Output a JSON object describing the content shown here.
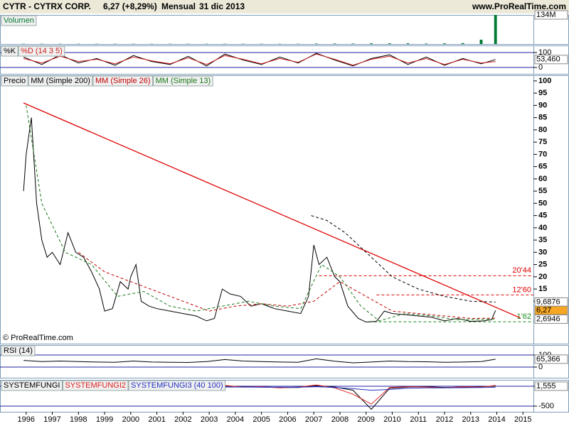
{
  "header": {
    "symbol": "CYTR - CYTRX CORP.",
    "quote": "6,27 (+8,29%)",
    "period": "Mensual",
    "date": "31 dic 2013",
    "site": "www.ProRealTime.com"
  },
  "copyright": "© ProRealTime.com",
  "x_axis": {
    "xlim": [
      1995,
      2015.4
    ],
    "xticks": [
      1996,
      1997,
      1998,
      1999,
      2000,
      2001,
      2002,
      2003,
      2004,
      2005,
      2006,
      2007,
      2008,
      2009,
      2010,
      2011,
      2012,
      2013,
      2014,
      2015
    ]
  },
  "chart_data": [
    {
      "type": "bar",
      "ylim": [
        0,
        134
      ],
      "x": [
        1995.9,
        1996.6,
        1997.3,
        1998.0,
        1998.7,
        1999.4,
        2000.1,
        2000.8,
        2001.5,
        2002.2,
        2002.9,
        2003.6,
        2004.3,
        2005.0,
        2005.7,
        2006.4,
        2007.1,
        2007.8,
        2008.5,
        2009.2,
        2009.9,
        2010.6,
        2011.3,
        2012.0,
        2012.7,
        2013.4,
        2013.95
      ],
      "series": [
        {
          "name": "Volumen",
          "color": "#007a33",
          "values": [
            1,
            1,
            1,
            1,
            1,
            1,
            1,
            1,
            1,
            1,
            1,
            1,
            1,
            1,
            1,
            1,
            2,
            2,
            2,
            3,
            3,
            3,
            2,
            3,
            4,
            20,
            134
          ]
        }
      ],
      "last_value": {
        "value": 134,
        "label": "134M"
      }
    },
    {
      "type": "line",
      "ylim": [
        -43,
        148
      ],
      "yticks": [
        0,
        100
      ],
      "x": [
        1995.9,
        1996.6,
        1997.3,
        1998.0,
        1998.7,
        1999.4,
        2000.1,
        2000.8,
        2001.5,
        2002.2,
        2002.9,
        2003.6,
        2004.3,
        2005.0,
        2005.7,
        2006.4,
        2007.1,
        2007.8,
        2008.5,
        2009.2,
        2009.9,
        2010.6,
        2011.3,
        2012.0,
        2012.7,
        2013.4,
        2013.95
      ],
      "series": [
        {
          "name": "%K",
          "color": "#000000",
          "values": [
            70,
            20,
            85,
            30,
            60,
            15,
            80,
            40,
            20,
            75,
            10,
            90,
            50,
            20,
            70,
            30,
            95,
            50,
            10,
            60,
            85,
            20,
            70,
            15,
            60,
            25,
            53.46
          ]
        },
        {
          "name": "%D (14 3 5)",
          "color": "#d02020",
          "values": [
            60,
            30,
            75,
            40,
            55,
            25,
            70,
            45,
            25,
            65,
            20,
            80,
            55,
            25,
            60,
            35,
            90,
            55,
            15,
            55,
            75,
            30,
            60,
            20,
            55,
            30,
            40
          ]
        }
      ],
      "last_value": {
        "value": 53.46,
        "label": "53,460"
      }
    },
    {
      "type": "line",
      "ylim": [
        -7.3,
        102.3
      ],
      "yticks": [
        100,
        95,
        90,
        85,
        80,
        75,
        70,
        65,
        60,
        55,
        50,
        45,
        40,
        35,
        30,
        25,
        20,
        15,
        10
      ],
      "series": [
        {
          "name": "Precio",
          "color": "#000000",
          "x": [
            1995.9,
            1996.0,
            1996.2,
            1996.4,
            1996.6,
            1996.8,
            1997.0,
            1997.3,
            1997.6,
            1997.9,
            1998.2,
            1998.5,
            1998.8,
            1999.0,
            1999.3,
            1999.6,
            1999.9,
            2000.0,
            2000.2,
            2000.4,
            2000.7,
            2001.0,
            2001.5,
            2002.0,
            2002.5,
            2002.9,
            2003.2,
            2003.5,
            2003.8,
            2004.2,
            2004.6,
            2005.0,
            2005.5,
            2006.0,
            2006.5,
            2006.8,
            2007.0,
            2007.2,
            2007.5,
            2007.8,
            2008.0,
            2008.3,
            2008.7,
            2009.0,
            2009.4,
            2009.7,
            2010.0,
            2010.5,
            2011.0,
            2011.5,
            2012.0,
            2012.5,
            2013.0,
            2013.5,
            2013.8,
            2013.95
          ],
          "values": [
            55,
            70,
            85,
            50,
            35,
            28,
            30,
            25,
            38,
            30,
            28,
            22,
            15,
            6,
            7,
            18,
            15,
            20,
            25,
            10,
            8,
            7,
            6,
            5,
            4,
            2,
            3,
            15,
            13,
            12,
            8,
            9,
            7,
            6,
            5,
            12,
            33,
            25,
            28,
            20,
            18,
            8,
            3,
            1.5,
            1.8,
            6,
            5,
            4.5,
            4,
            3.5,
            2,
            3,
            1.8,
            2,
            2.5,
            6.27
          ]
        },
        {
          "name": "MM (Simple 200)",
          "color": "#000000",
          "x": [
            2006.9,
            2007.5,
            2008.2,
            2009,
            2010,
            2011,
            2012,
            2013,
            2013.95
          ],
          "values": [
            45,
            43,
            38,
            30,
            20,
            15,
            12,
            10,
            9.6876
          ]
        },
        {
          "name": "MM (Simple 26)",
          "color": "#c00000",
          "x": [
            1998,
            1999,
            2000,
            2001,
            2002,
            2003,
            2004,
            2005,
            2006,
            2007,
            2008,
            2009,
            2010,
            2011,
            2012,
            2013,
            2013.95
          ],
          "values": [
            30,
            22,
            18,
            14,
            10,
            6,
            8,
            9,
            8,
            10,
            18,
            12,
            6,
            5,
            4,
            3,
            3.1
          ]
        },
        {
          "name": "MM (Simple 13)",
          "color": "#1a7a1a",
          "x": [
            1996,
            1996.6,
            1997.5,
            1998.5,
            1999.5,
            2000.5,
            2001.5,
            2002.5,
            2003.5,
            2004.5,
            2005.5,
            2006.5,
            2007.3,
            2008,
            2008.8,
            2009.5,
            2010.5,
            2011.5,
            2012.5,
            2013.95
          ],
          "values": [
            90,
            50,
            30,
            25,
            12,
            14,
            8,
            6,
            8,
            10,
            8,
            7,
            25,
            20,
            8,
            2,
            5,
            4,
            2.5,
            2.6946
          ]
        }
      ],
      "trendline": {
        "color": "#e00000",
        "x": [
          1995.9,
          2014.9
        ],
        "values": [
          91,
          3.2
        ]
      },
      "levels": [
        {
          "value": 20.44,
          "label": "20'44",
          "from": 2007.2,
          "color": "#e00000"
        },
        {
          "value": 12.6,
          "label": "12'60",
          "from": 2009.4,
          "color": "#e00000"
        },
        {
          "value": 1.62,
          "label": "1'62",
          "from": 2009.1,
          "color": "#1a8a1a"
        }
      ],
      "markers": [
        {
          "value": 9.6876,
          "label": "9,6876",
          "color": "#ffffff"
        },
        {
          "value": 6.27,
          "label": "6,27",
          "color": "#f5a623"
        },
        {
          "value": 2.6946,
          "label": "2,6946",
          "color": "#ffffff"
        }
      ]
    },
    {
      "type": "line",
      "ylim": [
        -88,
        182
      ],
      "yticks": [
        0,
        100
      ],
      "x": [
        1995.9,
        1996.6,
        1997.3,
        1998.0,
        1998.7,
        1999.4,
        2000.1,
        2000.8,
        2001.5,
        2002.2,
        2002.9,
        2003.6,
        2004.3,
        2005.0,
        2005.7,
        2006.4,
        2007.1,
        2007.8,
        2008.5,
        2009.2,
        2009.9,
        2010.6,
        2011.3,
        2012.0,
        2012.7,
        2013.4,
        2013.95
      ],
      "series": [
        {
          "name": "RSI (14)",
          "color": "#000000",
          "values": [
            55,
            45,
            50,
            45,
            42,
            40,
            50,
            42,
            40,
            38,
            45,
            62,
            50,
            45,
            42,
            40,
            68,
            48,
            35,
            42,
            50,
            45,
            44,
            40,
            42,
            45,
            65.366
          ]
        }
      ],
      "last_value": {
        "value": 65.366,
        "label": "65,366"
      }
    },
    {
      "type": "line",
      "ylim": [
        -643,
        161
      ],
      "yticks": [
        -500,
        0
      ],
      "x": [
        1995.9,
        1996.6,
        1997.3,
        1998.0,
        1998.7,
        1999.4,
        2000.1,
        2000.8,
        2001.5,
        2002.2,
        2002.9,
        2003.6,
        2004.3,
        2005.0,
        2005.7,
        2006.4,
        2007.1,
        2007.8,
        2008.5,
        2009.2,
        2009.9,
        2010.6,
        2011.3,
        2012.0,
        2012.7,
        2013.4,
        2013.95
      ],
      "series": [
        {
          "name": "SYSTEMFUNGI",
          "color": "#000000",
          "values": [
            0,
            -20,
            -10,
            -30,
            -20,
            -40,
            -10,
            -30,
            -40,
            -40,
            -30,
            10,
            -10,
            -20,
            -30,
            -30,
            20,
            -20,
            -100,
            -580,
            -50,
            -20,
            -10,
            -30,
            -20,
            -10,
            1.555
          ]
        },
        {
          "name": "SYSTEMFUNGI2",
          "color": "#e02020",
          "values": [
            10,
            -30,
            0,
            -40,
            -10,
            -50,
            0,
            -40,
            -30,
            -50,
            -20,
            20,
            -20,
            -10,
            -40,
            -20,
            30,
            -40,
            -200,
            -450,
            -30,
            -10,
            -20,
            -40,
            -10,
            -20,
            20
          ]
        },
        {
          "name": "SYSTEMFUNGI3 (40 100)",
          "color": "#2030c0",
          "values": [
            -20,
            -25,
            -25,
            -30,
            -30,
            -35,
            -30,
            -30,
            -35,
            -35,
            -30,
            -20,
            -20,
            -25,
            -25,
            -25,
            -10,
            -30,
            -60,
            -100,
            -80,
            -50,
            -40,
            -40,
            -35,
            -30,
            -25
          ]
        }
      ],
      "last_value": {
        "value": 1.555,
        "label": "1,555"
      }
    }
  ]
}
